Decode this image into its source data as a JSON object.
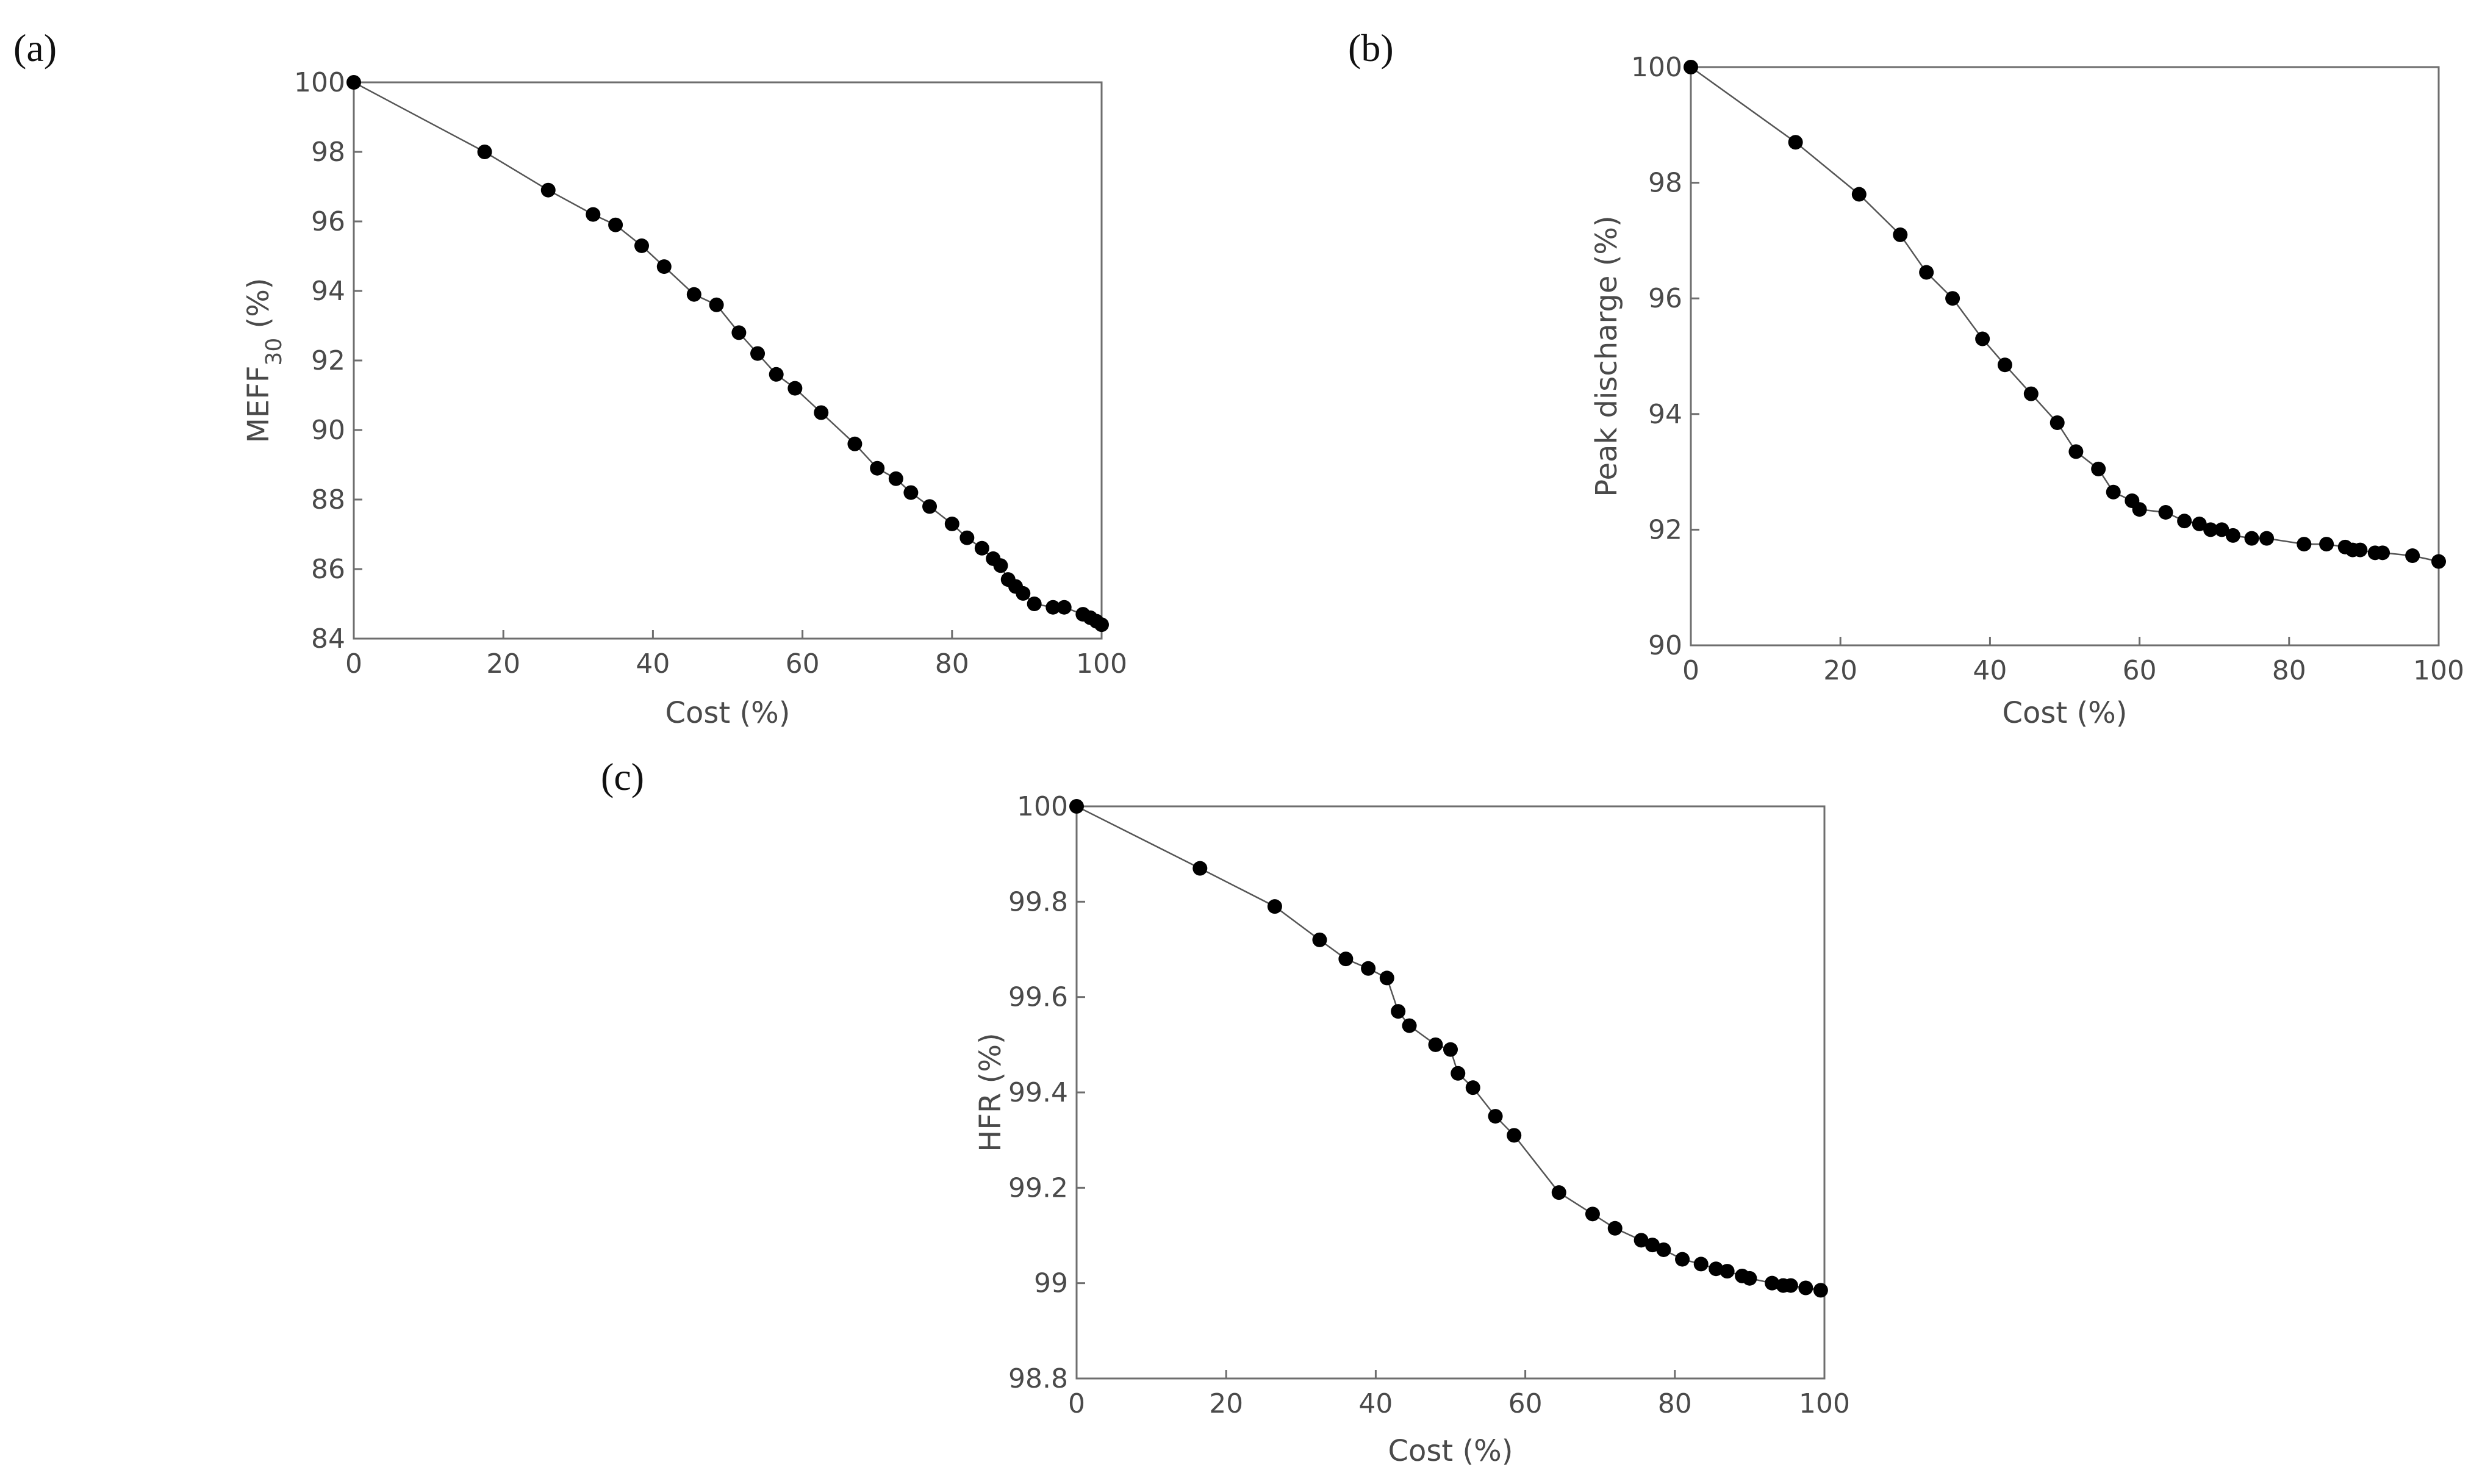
{
  "chart_data": [
    {
      "panel": "(a)",
      "type": "line",
      "xlabel": "Cost (%)",
      "ylabel": "MEFF",
      "ylabel_subscript": "30",
      "ylabel_suffix": " (%)",
      "xlim": [
        0,
        100
      ],
      "ylim": [
        84,
        100
      ],
      "xticks": [
        "0",
        "20",
        "40",
        "60",
        "80",
        "100"
      ],
      "yticks": [
        "84",
        "86",
        "88",
        "90",
        "92",
        "94",
        "96",
        "98",
        "100"
      ],
      "grid": false,
      "series": [
        {
          "x": [
            0,
            17.5,
            26,
            32,
            35,
            38.5,
            41.5,
            45.5,
            48.5,
            51.5,
            54,
            56.5,
            59,
            62.5,
            67,
            70,
            72.5,
            74.5,
            77,
            80,
            82,
            84,
            85.5,
            86.5,
            87.5,
            88.5,
            89.5,
            91,
            93.5,
            95,
            97.5,
            98.5,
            99.3,
            100
          ],
          "y": [
            100,
            98.0,
            96.9,
            96.2,
            95.9,
            95.3,
            94.7,
            93.9,
            93.6,
            92.8,
            92.2,
            91.6,
            91.2,
            90.5,
            89.6,
            88.9,
            88.6,
            88.2,
            87.8,
            87.3,
            86.9,
            86.6,
            86.3,
            86.1,
            85.7,
            85.5,
            85.3,
            85.0,
            84.9,
            84.9,
            84.7,
            84.6,
            84.5,
            84.4
          ]
        }
      ]
    },
    {
      "panel": "(b)",
      "type": "line",
      "xlabel": "Cost (%)",
      "ylabel": "Peak discharge (%)",
      "xlim": [
        0,
        100
      ],
      "ylim": [
        90,
        100
      ],
      "xticks": [
        "0",
        "20",
        "40",
        "60",
        "80",
        "100"
      ],
      "yticks": [
        "90",
        "92",
        "94",
        "96",
        "98",
        "100"
      ],
      "grid": false,
      "series": [
        {
          "x": [
            0,
            14,
            22.5,
            28,
            31.5,
            35,
            39,
            42,
            45.5,
            49,
            51.5,
            54.5,
            56.5,
            59,
            60,
            63.5,
            66,
            68,
            69.5,
            71,
            72.5,
            75,
            77,
            82,
            85,
            87.5,
            88.5,
            89.5,
            91.5,
            92.5,
            96.5,
            100
          ],
          "y": [
            100,
            98.7,
            97.8,
            97.1,
            96.45,
            96.0,
            95.3,
            94.85,
            94.35,
            93.85,
            93.35,
            93.05,
            92.65,
            92.5,
            92.35,
            92.3,
            92.15,
            92.1,
            92.0,
            92.0,
            91.9,
            91.85,
            91.85,
            91.75,
            91.75,
            91.7,
            91.65,
            91.65,
            91.6,
            91.6,
            91.55,
            91.45
          ]
        }
      ]
    },
    {
      "panel": "(c)",
      "type": "line",
      "xlabel": "Cost (%)",
      "ylabel": "HFR (%)",
      "xlim": [
        0,
        100
      ],
      "ylim": [
        98.8,
        100
      ],
      "xticks": [
        "0",
        "20",
        "40",
        "60",
        "80",
        "100"
      ],
      "yticks": [
        "98.8",
        "99",
        "99.2",
        "99.4",
        "99.6",
        "99.8",
        "100"
      ],
      "grid": false,
      "series": [
        {
          "x": [
            0,
            16.5,
            26.5,
            32.5,
            36,
            39,
            41.5,
            43,
            44.5,
            48,
            50,
            51,
            53,
            56,
            58.5,
            64.5,
            69,
            72,
            75.5,
            77,
            78.5,
            81,
            83.5,
            85.5,
            87,
            89,
            90,
            93,
            94.5,
            95.5,
            97.5,
            99.5
          ],
          "y": [
            100,
            99.87,
            99.79,
            99.72,
            99.68,
            99.66,
            99.64,
            99.57,
            99.54,
            99.5,
            99.49,
            99.44,
            99.41,
            99.35,
            99.31,
            99.19,
            99.145,
            99.115,
            99.09,
            99.08,
            99.07,
            99.05,
            99.04,
            99.03,
            99.025,
            99.015,
            99.01,
            99.0,
            98.995,
            98.995,
            98.99,
            98.985
          ]
        }
      ]
    }
  ]
}
